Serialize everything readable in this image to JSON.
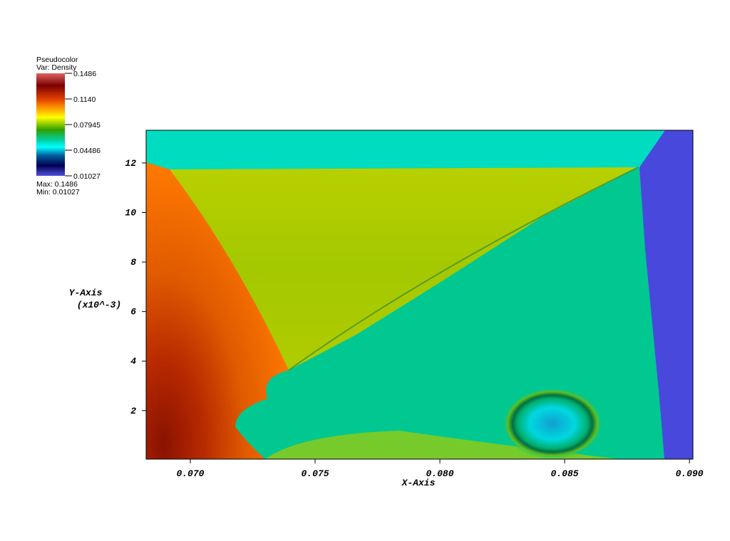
{
  "chart_data": {
    "type": "pseudocolor",
    "x_label": "X-Axis",
    "y_label": "Y-Axis",
    "y_label_scale": "(x10^-3)",
    "xlim": [
      0.06823,
      0.09014
    ],
    "ylim": [
      0.04,
      13.32
    ],
    "xticks": [
      {
        "value": 0.07,
        "label": "0.070"
      },
      0.075,
      {
        "value": 0.08,
        "label": "0.080"
      },
      0.085,
      {
        "value": 0.09,
        "label": "0.090"
      }
    ],
    "yticks": [
      2,
      4,
      6,
      8,
      10,
      12
    ],
    "legend": {
      "plot": "Pseudocolor",
      "variable": "Var: Density",
      "ticks": [
        0.1486,
        {
          "value": 0.114,
          "label": "0.1140"
        },
        0.07945,
        0.04486,
        0.01027
      ],
      "max": "Max: 0.1486",
      "min": "Min: 0.01027"
    }
  }
}
